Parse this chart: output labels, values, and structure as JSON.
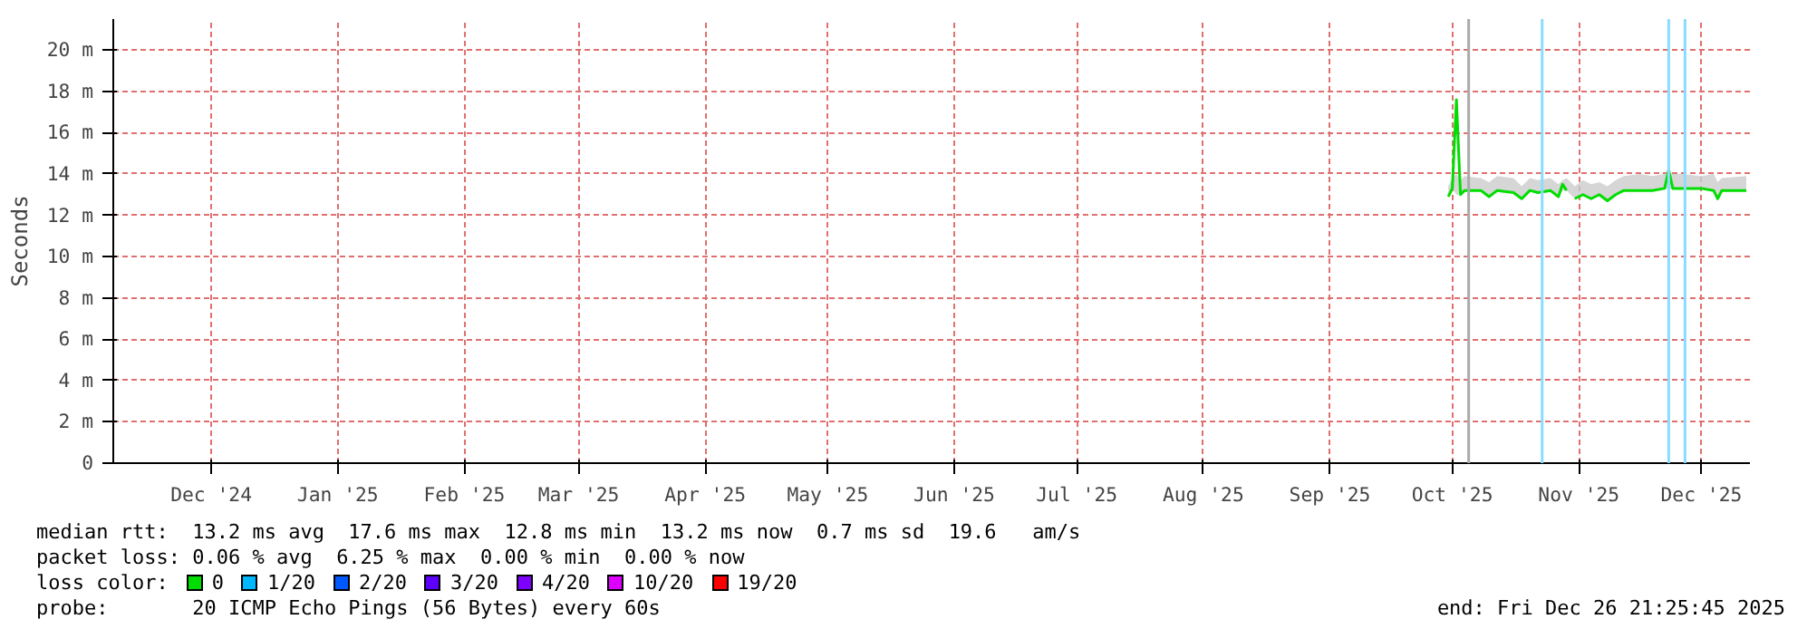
{
  "chart_data": {
    "type": "line",
    "ylabel": "Seconds",
    "x": [
      "2025-10-14",
      "2025-10-15",
      "2025-10-16",
      "2025-10-17",
      "2025-10-18",
      "2025-10-22",
      "2025-10-24",
      "2025-10-26",
      "2025-10-30",
      "2025-11-01",
      "2025-11-03",
      "2025-11-05",
      "2025-11-08",
      "2025-11-10",
      "2025-11-11",
      "2025-11-12",
      "2025-11-13",
      "2025-11-14",
      "2025-11-16",
      "2025-11-18",
      "2025-11-20",
      "2025-11-22",
      "2025-11-24",
      "2025-11-26",
      "2025-11-30",
      "2025-12-03",
      "2025-12-06",
      "2025-12-07",
      "2025-12-08",
      "2025-12-10",
      "2025-12-15",
      "2025-12-18",
      "2025-12-19",
      "2025-12-20",
      "2025-12-26"
    ],
    "series": [
      {
        "name": "0",
        "color": "#00dd00",
        "values": [
          12.9,
          13.3,
          17.6,
          13.0,
          13.2,
          13.2,
          12.9,
          13.2,
          13.1,
          12.8,
          13.2,
          13.1,
          13.2,
          12.9,
          13.5,
          13.2,
          null,
          12.8,
          13.0,
          12.8,
          13.0,
          12.7,
          13.0,
          13.2,
          13.2,
          13.2,
          13.3,
          14.2,
          13.3,
          13.3,
          13.3,
          13.2,
          12.8,
          13.2,
          13.2
        ],
        "lower": [
          12.9,
          13.3,
          13.0,
          13.0,
          13.2,
          13.2,
          12.9,
          13.2,
          13.1,
          12.8,
          13.2,
          13.1,
          13.2,
          12.9,
          13.2,
          13.2,
          null,
          12.8,
          13.0,
          12.8,
          13.0,
          12.7,
          13.0,
          13.2,
          13.2,
          13.2,
          13.3,
          13.3,
          13.3,
          13.3,
          13.3,
          13.2,
          12.8,
          13.2,
          13.2
        ],
        "upper": [
          13.4,
          13.8,
          14.0,
          13.7,
          13.9,
          13.8,
          13.6,
          13.9,
          13.8,
          13.4,
          13.8,
          13.7,
          13.8,
          13.5,
          13.7,
          13.8,
          null,
          13.4,
          13.7,
          13.5,
          13.6,
          13.4,
          13.7,
          13.9,
          14.0,
          13.9,
          14.0,
          14.1,
          14.0,
          14.0,
          13.9,
          14.0,
          13.6,
          13.8,
          13.9
        ]
      },
      {
        "name": "1/20",
        "color": "#00b8ff",
        "values": [
          null,
          null,
          null,
          null,
          null,
          null,
          null,
          null,
          null,
          null,
          null,
          null,
          null,
          null,
          null,
          null,
          null,
          null,
          null,
          null,
          null,
          null,
          null,
          null,
          null,
          null,
          null,
          null,
          null,
          null,
          null,
          null,
          null,
          null,
          null
        ]
      },
      {
        "name": "2/20",
        "color": "#0059ff",
        "values": [
          null,
          null,
          null,
          null,
          null,
          null,
          null,
          null,
          null,
          null,
          null,
          null,
          null,
          null,
          null,
          null,
          null,
          null,
          null,
          null,
          null,
          null,
          null,
          null,
          null,
          null,
          null,
          null,
          null,
          null,
          null,
          null,
          null,
          null,
          null
        ]
      },
      {
        "name": "3/20",
        "color": "#5e00ff",
        "values": [
          null,
          null,
          null,
          null,
          null,
          null,
          null,
          null,
          null,
          null,
          null,
          null,
          null,
          null,
          null,
          null,
          null,
          null,
          null,
          null,
          null,
          null,
          null,
          null,
          null,
          null,
          null,
          null,
          null,
          null,
          null,
          null,
          null,
          null,
          null
        ]
      },
      {
        "name": "4/20",
        "color": "#7e00ff",
        "values": [
          null,
          null,
          null,
          null,
          null,
          null,
          null,
          null,
          null,
          null,
          null,
          null,
          null,
          null,
          null,
          null,
          null,
          null,
          null,
          null,
          null,
          null,
          null,
          null,
          null,
          null,
          null,
          null,
          null,
          null,
          null,
          null,
          null,
          null,
          null
        ]
      },
      {
        "name": "10/20",
        "color": "#dd00ff",
        "values": [
          null,
          null,
          null,
          null,
          null,
          null,
          null,
          null,
          null,
          null,
          null,
          null,
          null,
          null,
          null,
          null,
          null,
          null,
          null,
          null,
          null,
          null,
          null,
          null,
          null,
          null,
          null,
          null,
          null,
          null,
          null,
          null,
          null,
          null,
          null
        ]
      },
      {
        "name": "19/20",
        "color": "#ff0000",
        "values": [
          null,
          null,
          null,
          null,
          null,
          null,
          null,
          null,
          null,
          null,
          null,
          null,
          null,
          null,
          null,
          null,
          null,
          null,
          null,
          null,
          null,
          null,
          null,
          null,
          null,
          null,
          null,
          null,
          null,
          null,
          null,
          null,
          null,
          null,
          null
        ]
      }
    ],
    "legend_title": "loss color:",
    "ref_lines": [
      {
        "axis": "x",
        "value": "2025-10-19",
        "color": "#aaaaaa"
      },
      {
        "axis": "x",
        "value": "2025-11-06",
        "color": "#88ddff"
      },
      {
        "axis": "x",
        "value": "2025-12-07",
        "color": "#88ddff"
      },
      {
        "axis": "x",
        "value": "2025-12-11",
        "color": "#88ddff"
      }
    ],
    "xlim": [
      "2024-11-21",
      "2025-12-26T21:25"
    ],
    "xticks": [
      {
        "value": "2024-12-15",
        "label": "Dec '24"
      },
      {
        "value": "2025-01-15",
        "label": "Jan '25"
      },
      {
        "value": "2025-02-15",
        "label": "Feb '25"
      },
      {
        "value": "2025-03-15",
        "label": "Mar '25"
      },
      {
        "value": "2025-04-15",
        "label": "Apr '25"
      },
      {
        "value": "2025-05-15",
        "label": "May '25"
      },
      {
        "value": "2025-06-15",
        "label": "Jun '25"
      },
      {
        "value": "2025-07-15",
        "label": "Jul '25"
      },
      {
        "value": "2025-08-15",
        "label": "Aug '25"
      },
      {
        "value": "2025-09-15",
        "label": "Sep '25"
      },
      {
        "value": "2025-10-15",
        "label": "Oct '25"
      },
      {
        "value": "2025-11-15",
        "label": "Nov '25"
      },
      {
        "value": "2025-12-15",
        "label": "Dec '25"
      }
    ],
    "ylim": [
      0,
      21.5
    ],
    "yticks": [
      0,
      {
        "value": 2,
        "label": "2 m"
      },
      {
        "value": 4,
        "label": "4 m"
      },
      {
        "value": 6,
        "label": "6 m"
      },
      {
        "value": 8,
        "label": "8 m"
      },
      {
        "value": 10,
        "label": "10 m"
      },
      {
        "value": 12,
        "label": "12 m"
      },
      {
        "value": 14,
        "label": "14 m"
      },
      {
        "value": 16,
        "label": "16 m"
      },
      {
        "value": 18,
        "label": "18 m"
      },
      {
        "value": 20,
        "label": "20 m"
      }
    ],
    "grid": true,
    "legend": "bottom",
    "annotations": [
      "median rtt:  13.2 ms avg  17.6 ms max  12.8 ms min  13.2 ms now  0.7 ms sd  19.6   am/s",
      "packet loss: 0.06 % avg  6.25 % max  0.00 % min  0.00 % now",
      "probe:       20 ICMP Echo Pings (56 Bytes) every 60s",
      "end: Fri Dec 26 21:25:45 2025"
    ]
  }
}
